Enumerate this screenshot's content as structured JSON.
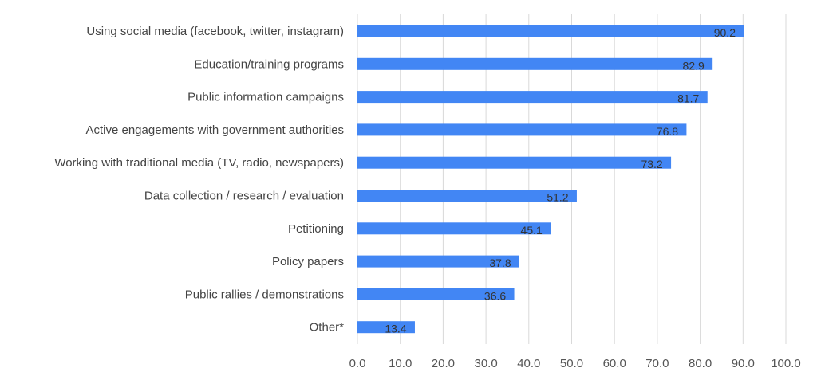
{
  "chart_data": {
    "type": "bar",
    "orientation": "horizontal",
    "categories": [
      "Using social media (facebook, twitter, instagram)",
      "Education/training programs",
      "Public information campaigns",
      "Active engagements with government authorities",
      "Working with traditional media (TV, radio, newspapers)",
      "Data collection / research / evaluation",
      "Petitioning",
      "Policy papers",
      "Public rallies / demonstrations",
      "Other*"
    ],
    "values": [
      90.2,
      82.9,
      81.7,
      76.8,
      73.2,
      51.2,
      45.1,
      37.8,
      36.6,
      13.4
    ],
    "value_labels": [
      "90.2",
      "82.9",
      "81.7",
      "76.8",
      "73.2",
      "51.2",
      "45.1",
      "37.8",
      "36.6",
      "13.4"
    ],
    "xticks": [
      "0.0",
      "10.0",
      "20.0",
      "30.0",
      "40.0",
      "50.0",
      "60.0",
      "70.0",
      "80.0",
      "90.0",
      "100.0"
    ],
    "xlim": [
      0,
      100
    ],
    "title": "",
    "xlabel": "",
    "ylabel": "",
    "grid": "vertical",
    "legend": "none",
    "bar_color": "#4286f4"
  }
}
